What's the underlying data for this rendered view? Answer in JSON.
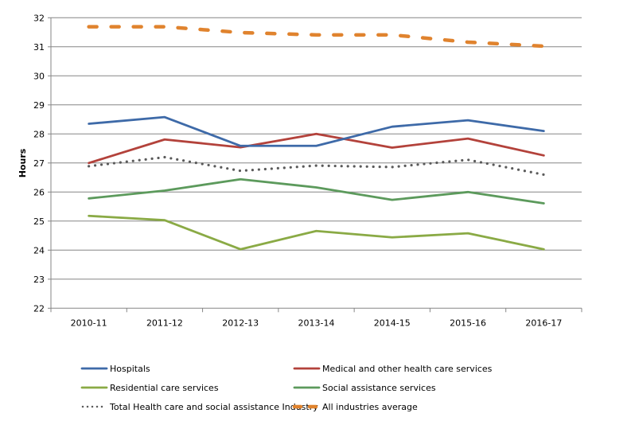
{
  "chart_data": {
    "type": "line",
    "title": "",
    "xlabel": "",
    "ylabel": "Hours",
    "ylim": [
      22,
      32
    ],
    "yticks": [
      "22",
      "23",
      "24",
      "25",
      "26",
      "27",
      "28",
      "29",
      "30",
      "31",
      "32"
    ],
    "grid": true,
    "legend_position": "bottom",
    "categories": [
      "2010-11",
      "2011-12",
      "2012-13",
      "2013-14",
      "2014-15",
      "2015-16",
      "2016-17"
    ],
    "series": [
      {
        "name": "Hospitals",
        "color": "#3e6aa8",
        "style": "solid",
        "values": [
          28.35,
          28.58,
          27.59,
          27.59,
          28.25,
          28.47,
          28.1
        ]
      },
      {
        "name": "Medical and other health care services",
        "color": "#b3423b",
        "style": "solid",
        "values": [
          27.0,
          27.81,
          27.54,
          28.0,
          27.53,
          27.84,
          27.26
        ]
      },
      {
        "name": "Residential care services",
        "color": "#8aaa45",
        "style": "solid",
        "values": [
          25.18,
          25.03,
          24.03,
          24.66,
          24.44,
          24.58,
          24.03
        ]
      },
      {
        "name": "Social assistance services",
        "color": "#5c9a5c",
        "style": "solid",
        "values": [
          25.78,
          26.05,
          26.44,
          26.16,
          25.73,
          26.0,
          25.61
        ]
      },
      {
        "name": "Total Health care and social assistance Industry",
        "color": "#5a5a5a",
        "style": "dotted",
        "values": [
          26.89,
          27.2,
          26.73,
          26.91,
          26.86,
          27.11,
          26.6
        ]
      },
      {
        "name": "All industries average",
        "color": "#e0832e",
        "style": "dashed",
        "values": [
          31.69,
          31.69,
          31.49,
          31.41,
          31.41,
          31.16,
          31.02
        ]
      }
    ]
  }
}
